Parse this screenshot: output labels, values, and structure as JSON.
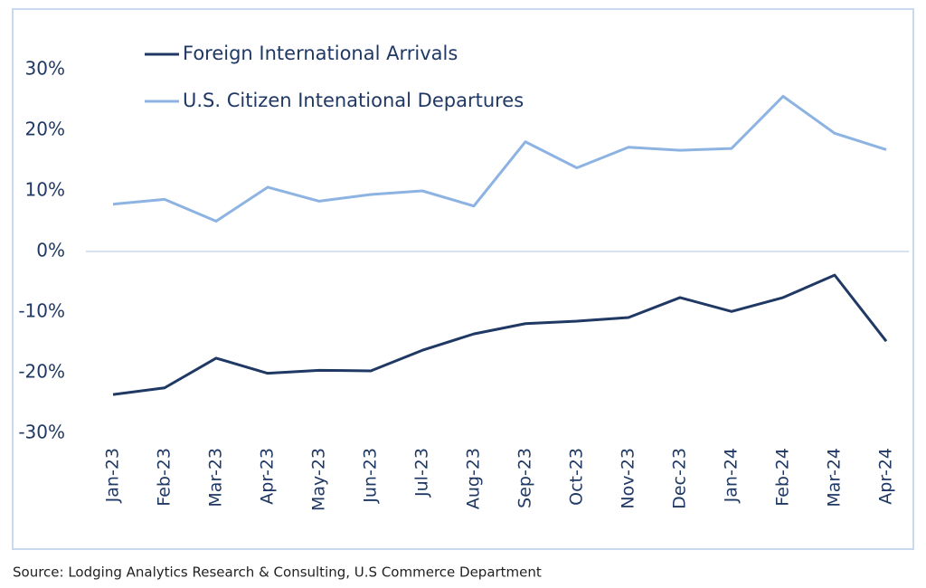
{
  "chart_data": {
    "type": "line",
    "categories": [
      "Jan-23",
      "Feb-23",
      "Mar-23",
      "Apr-23",
      "May-23",
      "Jun-23",
      "Jul-23",
      "Aug-23",
      "Sep-23",
      "Oct-23",
      "Nov-23",
      "Dec-23",
      "Jan-24",
      "Feb-24",
      "Mar-24",
      "Apr-24"
    ],
    "series": [
      {
        "name": "Foreign International Arrivals",
        "color": "#1f3864",
        "values": [
          -23.6,
          -22.5,
          -17.6,
          -20.1,
          -19.6,
          -19.7,
          -16.3,
          -13.6,
          -11.9,
          -11.5,
          -10.9,
          -7.6,
          -9.9,
          -7.6,
          -3.9,
          -14.8
        ]
      },
      {
        "name": "U.S. Citizen Intenational Departures",
        "color": "#8db3e2",
        "values": [
          7.8,
          8.6,
          5.0,
          10.6,
          8.3,
          9.4,
          10.0,
          7.5,
          18.1,
          13.8,
          17.2,
          16.7,
          17.0,
          25.6,
          19.5,
          16.8
        ]
      }
    ],
    "ylim": [
      -30,
      40
    ],
    "yticks": [
      {
        "value": -30,
        "label": "-30%"
      },
      {
        "value": -20,
        "label": "-20%"
      },
      {
        "value": -10,
        "label": "-10%"
      },
      {
        "value": 0,
        "label": "0%"
      },
      {
        "value": 10,
        "label": "10%"
      },
      {
        "value": 20,
        "label": "20%"
      },
      {
        "value": 30,
        "label": "30%"
      }
    ],
    "grid": false,
    "legend": "top-left",
    "source": "Source: Lodging Analytics Research & Consulting, U.S Commerce Department"
  }
}
